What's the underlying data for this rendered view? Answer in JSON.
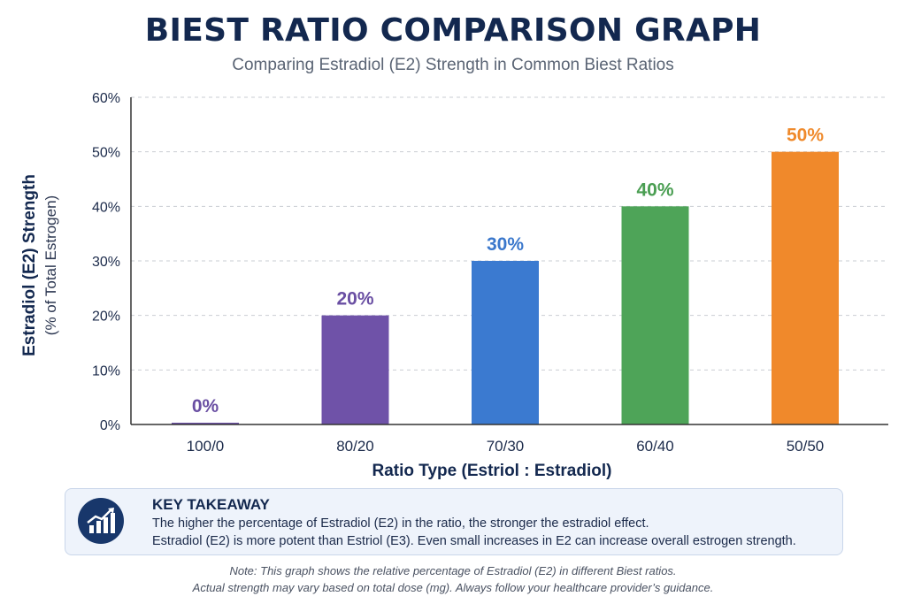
{
  "header": {
    "title": "BIEST RATIO COMPARISON GRAPH",
    "subtitle": "Comparing Estradiol (E2) Strength in Common Biest Ratios"
  },
  "chart_data": {
    "type": "bar",
    "title": "BIEST RATIO COMPARISON GRAPH",
    "subtitle": "Comparing Estradiol (E2) Strength in Common Biest Ratios",
    "categories": [
      "100/0",
      "80/20",
      "70/30",
      "60/40",
      "50/50"
    ],
    "values": [
      0,
      20,
      30,
      40,
      50
    ],
    "data_labels": [
      "0%",
      "20%",
      "30%",
      "40%",
      "50%"
    ],
    "bar_colors": [
      "#6f52a8",
      "#6f52a8",
      "#3b7ad0",
      "#4ea458",
      "#f0892b"
    ],
    "label_colors": [
      "#6a4fa3",
      "#6a4fa3",
      "#3b78cc",
      "#4a9e52",
      "#ef8a2c"
    ],
    "xlabel": "Ratio Type (Estriol : Estradiol)",
    "ylabel": "Estradiol (E2) Strength",
    "ylabel_sub": "(% of Total Estrogen)",
    "ylim": [
      0,
      60
    ],
    "yticks": [
      0,
      10,
      20,
      30,
      40,
      50,
      60
    ],
    "ytick_labels": [
      "0%",
      "10%",
      "20%",
      "30%",
      "40%",
      "50%",
      "60%"
    ],
    "grid": true,
    "grid_style": "dashed horizontal",
    "legend": "none"
  },
  "takeaway": {
    "icon": "chart-growth-icon",
    "heading": "KEY TAKEAWAY",
    "line1": "The higher the percentage of Estradiol (E2) in the ratio, the stronger the estradiol effect.",
    "line2": "Estradiol (E2) is more potent than Estriol (E3). Even small increases in E2 can increase overall estrogen strength."
  },
  "note": {
    "line1": "Note: This graph shows the relative percentage of Estradiol (E2) in different Biest ratios.",
    "line2": "Actual strength may vary based on total dose (mg). Always follow your healthcare provider’s guidance."
  }
}
